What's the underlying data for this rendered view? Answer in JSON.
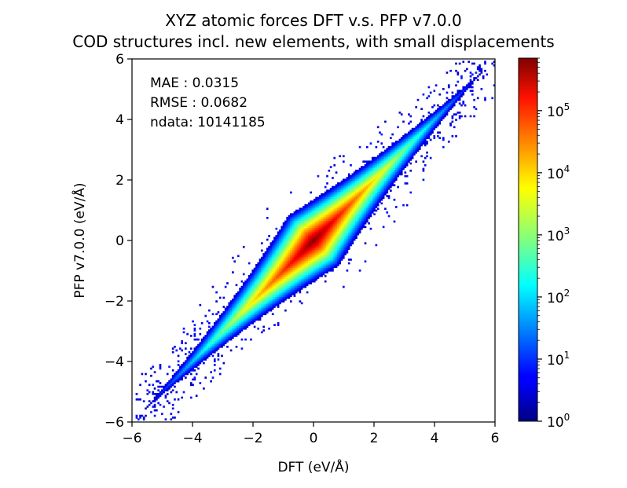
{
  "chart_data": {
    "type": "heatmap",
    "title": "XYZ atomic forces DFT v.s. PFP v7.0.0",
    "subtitle": "COD structures incl. new elements, with small displacements",
    "xlabel": "DFT (eV/Å)",
    "ylabel": "PFP v7.0.0 (eV/Å)",
    "xlim": [
      -6,
      6
    ],
    "ylim": [
      -6,
      6
    ],
    "xticks": [
      "−6",
      "−4",
      "−2",
      "0",
      "2",
      "4",
      "6"
    ],
    "yticks": [
      "−6",
      "−4",
      "−2",
      "0",
      "2",
      "4",
      "6"
    ],
    "grid": false,
    "annotations": [
      "MAE : 0.0315",
      "RMSE : 0.0682",
      "ndata: 10141185"
    ],
    "colorbar": {
      "scale": "log",
      "colormap": "jet",
      "range": [
        1,
        700000
      ],
      "ticks": [
        {
          "value": 1,
          "base": "10",
          "exp": "0"
        },
        {
          "value": 10,
          "base": "10",
          "exp": "1"
        },
        {
          "value": 100,
          "base": "10",
          "exp": "2"
        },
        {
          "value": 1000,
          "base": "10",
          "exp": "3"
        },
        {
          "value": 10000,
          "base": "10",
          "exp": "4"
        },
        {
          "value": 100000,
          "base": "10",
          "exp": "5"
        }
      ]
    },
    "density_model": {
      "description": "2D histogram of counts concentrated along the y = x diagonal",
      "peak_count": 700000,
      "diagonal_falloff_scale": 0.09,
      "radial_falloff_scale": 1.3,
      "bins_per_axis": 200
    }
  }
}
